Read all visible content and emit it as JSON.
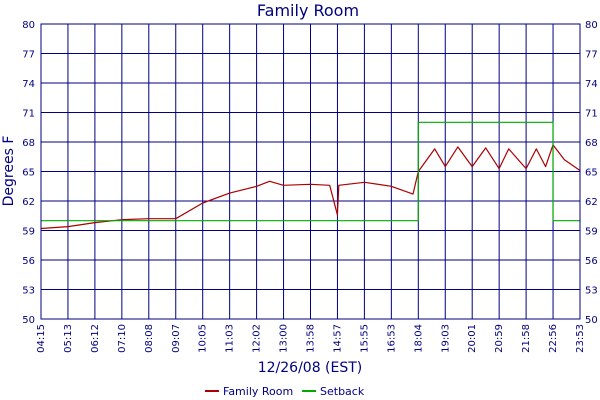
{
  "chart_data": {
    "type": "line",
    "title": "Family Room",
    "xlabel": "12/26/08 (EST)",
    "ylabel": "Degrees F",
    "x_ticks": [
      "04:15",
      "05:13",
      "06:12",
      "07:10",
      "08:08",
      "09:07",
      "10:05",
      "11:03",
      "12:02",
      "13:00",
      "13:58",
      "14:57",
      "15:55",
      "16:53",
      "18:04",
      "19:03",
      "20:01",
      "20:59",
      "21:58",
      "22:56",
      "23:53"
    ],
    "y_ticks": [
      50,
      53,
      56,
      59,
      62,
      65,
      68,
      71,
      74,
      77,
      80
    ],
    "ylim": [
      50,
      80
    ],
    "grid": true,
    "legend": "bottom",
    "colors": {
      "axis": "#000080",
      "family_room": "#aa0000",
      "setback": "#00aa00"
    },
    "series": [
      {
        "name": "Family Room",
        "x": [
          "04:15",
          "05:13",
          "06:12",
          "07:10",
          "08:08",
          "09:07",
          "10:05",
          "11:03",
          "12:02",
          "12:30",
          "13:00",
          "13:58",
          "14:40",
          "14:57",
          "15:00",
          "15:55",
          "16:53",
          "17:50",
          "18:04",
          "18:40",
          "19:03",
          "19:30",
          "20:01",
          "20:30",
          "20:59",
          "21:20",
          "21:58",
          "22:20",
          "22:40",
          "22:56",
          "23:20",
          "23:53"
        ],
        "values": [
          59.2,
          59.4,
          59.8,
          60.1,
          60.2,
          60.2,
          61.8,
          62.8,
          63.5,
          64.0,
          63.6,
          63.7,
          63.6,
          60.6,
          63.6,
          63.9,
          63.5,
          62.7,
          65.0,
          67.3,
          65.5,
          67.5,
          65.5,
          67.4,
          65.3,
          67.3,
          65.3,
          67.3,
          65.5,
          67.7,
          66.2,
          65.1
        ]
      },
      {
        "name": "Setback",
        "x": [
          "04:15",
          "18:04",
          "18:04",
          "22:56",
          "22:56",
          "23:53"
        ],
        "values": [
          60,
          60,
          70,
          70,
          60,
          60
        ]
      }
    ]
  }
}
